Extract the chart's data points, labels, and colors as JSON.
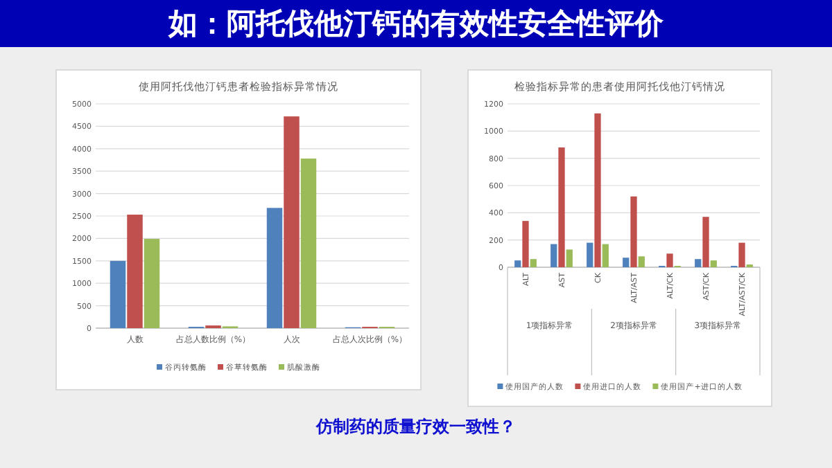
{
  "chart_data": [
    {
      "type": "bar",
      "title": "使用阿托伐他汀钙患者检验指标异常情况",
      "categories": [
        "人数",
        "占总人数比例（%）",
        "人次",
        "占总人次比例（%）"
      ],
      "series": [
        {
          "name": "谷丙转氨酶",
          "color": "#4f81bd",
          "values": [
            1500,
            30,
            2680,
            20
          ]
        },
        {
          "name": "谷草转氨酶",
          "color": "#c0504d",
          "values": [
            2530,
            60,
            4720,
            30
          ]
        },
        {
          "name": "肌酸激酶",
          "color": "#9bbb59",
          "values": [
            1990,
            40,
            3780,
            30
          ]
        }
      ],
      "ylim": [
        0,
        5000
      ],
      "yticks": [
        0,
        500,
        1000,
        1500,
        2000,
        2500,
        3000,
        3500,
        4000,
        4500,
        5000
      ],
      "grid": "y",
      "legend": "bottom"
    },
    {
      "type": "bar",
      "title": "检验指标异常的患者使用阿托伐他汀钙情况",
      "categories": [
        "ALT",
        "AST",
        "CK",
        "ALT/AST",
        "ALT/CK",
        "AST/CK",
        "ALT/AST/CK"
      ],
      "series": [
        {
          "name": "使用国产的人数",
          "color": "#4f81bd",
          "values": [
            50,
            170,
            180,
            70,
            10,
            60,
            10
          ]
        },
        {
          "name": "使用进口的人数",
          "color": "#c0504d",
          "values": [
            340,
            880,
            1130,
            520,
            100,
            370,
            180
          ]
        },
        {
          "name": "使用国产+进口的人数",
          "color": "#9bbb59",
          "values": [
            60,
            130,
            170,
            80,
            10,
            50,
            20
          ]
        }
      ],
      "ylim": [
        0,
        1200
      ],
      "yticks": [
        0,
        200,
        400,
        600,
        800,
        1000,
        1200
      ],
      "grid": "y",
      "legend": "bottom",
      "annotations": [
        "1项指标异常",
        "2项指标异常",
        "3项指标异常"
      ]
    },
    {
      "type": "other",
      "title": "如：阿托伐他汀钙的有效性安全性评价",
      "annotations": [
        "仿制药的质量疗效一致性？"
      ]
    }
  ]
}
